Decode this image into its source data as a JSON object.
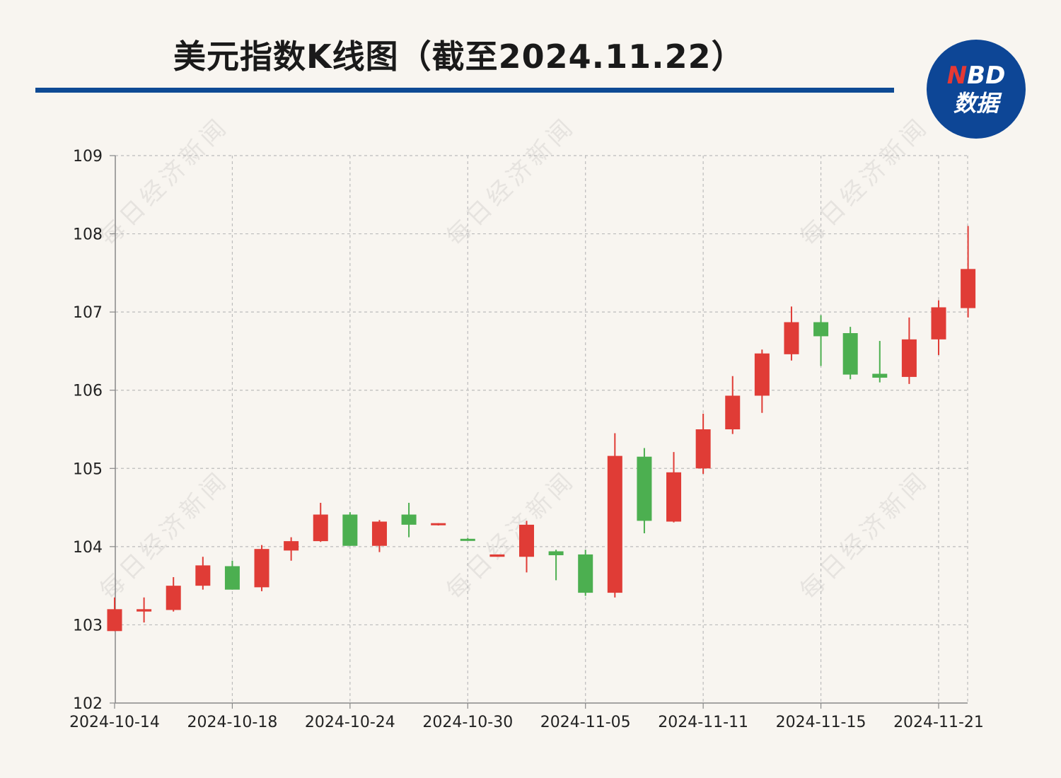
{
  "title": "美元指数K线图（截至2024.11.22）",
  "logo": {
    "line1_n": "N",
    "line1_rest": "BD",
    "line2": "数据"
  },
  "watermark_text": "每日经济新闻",
  "colors": {
    "up": "#e03c36",
    "down": "#4caf50",
    "accent": "#0e4a94",
    "grid": "#bcbcbc"
  },
  "chart_data": {
    "type": "candlestick",
    "title": "美元指数K线图（截至2024.11.22）",
    "xlabel": "",
    "ylabel": "",
    "ylim": [
      102,
      109
    ],
    "yticks": [
      "102",
      "103",
      "104",
      "105",
      "106",
      "107",
      "108",
      "109"
    ],
    "xtick_labels": [
      "2024-10-14",
      "2024-10-18",
      "2024-10-24",
      "2024-10-30",
      "2024-11-05",
      "2024-11-11",
      "2024-11-15",
      "2024-11-21"
    ],
    "xtick_positions": [
      0,
      4,
      8,
      12,
      16,
      20,
      24,
      28
    ],
    "grid": true,
    "up_color_meaning": "red = close > open, green = close < open",
    "candles": [
      {
        "o": 102.92,
        "h": 103.35,
        "l": 102.92,
        "c": 103.2
      },
      {
        "o": 103.17,
        "h": 103.35,
        "l": 103.03,
        "c": 103.2
      },
      {
        "o": 103.19,
        "h": 103.61,
        "l": 103.17,
        "c": 103.5
      },
      {
        "o": 103.5,
        "h": 103.87,
        "l": 103.45,
        "c": 103.76
      },
      {
        "o": 103.75,
        "h": 103.82,
        "l": 103.45,
        "c": 103.45
      },
      {
        "o": 103.48,
        "h": 104.02,
        "l": 103.43,
        "c": 103.97
      },
      {
        "o": 103.95,
        "h": 104.12,
        "l": 103.82,
        "c": 104.07
      },
      {
        "o": 104.07,
        "h": 104.56,
        "l": 104.06,
        "c": 104.41
      },
      {
        "o": 104.41,
        "h": 104.44,
        "l": 104.01,
        "c": 104.01
      },
      {
        "o": 104.01,
        "h": 104.34,
        "l": 103.93,
        "c": 104.32
      },
      {
        "o": 104.41,
        "h": 104.56,
        "l": 104.12,
        "c": 104.28
      },
      {
        "o": 104.28,
        "h": 104.3,
        "l": 104.27,
        "c": 104.3
      },
      {
        "o": 104.1,
        "h": 104.11,
        "l": 104.09,
        "c": 104.09
      },
      {
        "o": 103.87,
        "h": 103.9,
        "l": 103.87,
        "c": 103.9
      },
      {
        "o": 103.87,
        "h": 104.33,
        "l": 103.67,
        "c": 104.28
      },
      {
        "o": 103.94,
        "h": 103.96,
        "l": 103.57,
        "c": 103.89
      },
      {
        "o": 103.9,
        "h": 103.96,
        "l": 103.37,
        "c": 103.41
      },
      {
        "o": 103.41,
        "h": 105.45,
        "l": 103.35,
        "c": 105.16
      },
      {
        "o": 105.15,
        "h": 105.26,
        "l": 104.17,
        "c": 104.33
      },
      {
        "o": 104.32,
        "h": 105.21,
        "l": 104.31,
        "c": 104.95
      },
      {
        "o": 105.0,
        "h": 105.7,
        "l": 104.93,
        "c": 105.5
      },
      {
        "o": 105.5,
        "h": 106.18,
        "l": 105.44,
        "c": 105.93
      },
      {
        "o": 105.93,
        "h": 106.52,
        "l": 105.71,
        "c": 106.47
      },
      {
        "o": 106.46,
        "h": 107.07,
        "l": 106.38,
        "c": 106.87
      },
      {
        "o": 106.87,
        "h": 106.96,
        "l": 106.31,
        "c": 106.69
      },
      {
        "o": 106.73,
        "h": 106.81,
        "l": 106.14,
        "c": 106.2
      },
      {
        "o": 106.21,
        "h": 106.63,
        "l": 106.1,
        "c": 106.16
      },
      {
        "o": 106.17,
        "h": 106.93,
        "l": 106.08,
        "c": 106.65
      },
      {
        "o": 106.65,
        "h": 107.15,
        "l": 106.45,
        "c": 107.06
      },
      {
        "o": 107.05,
        "h": 108.1,
        "l": 106.93,
        "c": 107.55
      }
    ]
  }
}
